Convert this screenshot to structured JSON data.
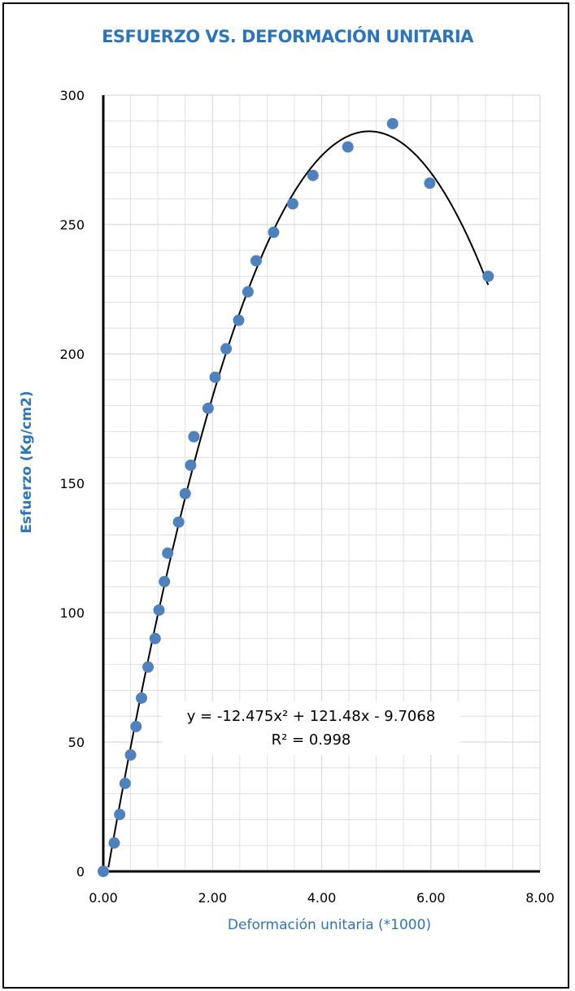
{
  "chart_data": {
    "type": "scatter",
    "title": "ESFUERZO VS. DEFORMACIÓN UNITARIA",
    "xlabel": "Deformación unitaria (*1000)",
    "ylabel": "Esfuerzo (Kg/cm2)",
    "xlim": [
      0,
      8
    ],
    "ylim": [
      0,
      300
    ],
    "x_ticks": [
      "0.00",
      "2.00",
      "4.00",
      "6.00",
      "8.00"
    ],
    "y_ticks": [
      "0",
      "50",
      "100",
      "150",
      "200",
      "250",
      "300"
    ],
    "grid": true,
    "colors": {
      "title": "#2e75b6",
      "axis_title": "#2e75b6",
      "points": "#4f81bd",
      "trend": "#000000",
      "grid": "#d9d9d9"
    },
    "series": [
      {
        "x": [
          0.0,
          0.2,
          0.3,
          0.4,
          0.5,
          0.6,
          0.7,
          0.82,
          0.95,
          1.02,
          1.12,
          1.18,
          1.38,
          1.5,
          1.6,
          1.66,
          1.92,
          2.05,
          2.25,
          2.48,
          2.65,
          2.8,
          3.12,
          3.47,
          3.84,
          4.48,
          5.3,
          5.98,
          7.05
        ],
        "y": [
          0,
          11,
          22,
          34,
          45,
          56,
          67,
          79,
          90,
          101,
          112,
          123,
          135,
          146,
          157,
          168,
          179,
          191,
          202,
          213,
          224,
          236,
          247,
          258,
          269,
          280,
          289,
          266,
          230
        ]
      }
    ],
    "trendline": {
      "type": "polynomial",
      "coefficients": [
        -12.475,
        121.48,
        -9.7068
      ],
      "equation": "y = -12.475x² + 121.48x - 9.7068",
      "r_squared": "R² = 0.998"
    }
  }
}
